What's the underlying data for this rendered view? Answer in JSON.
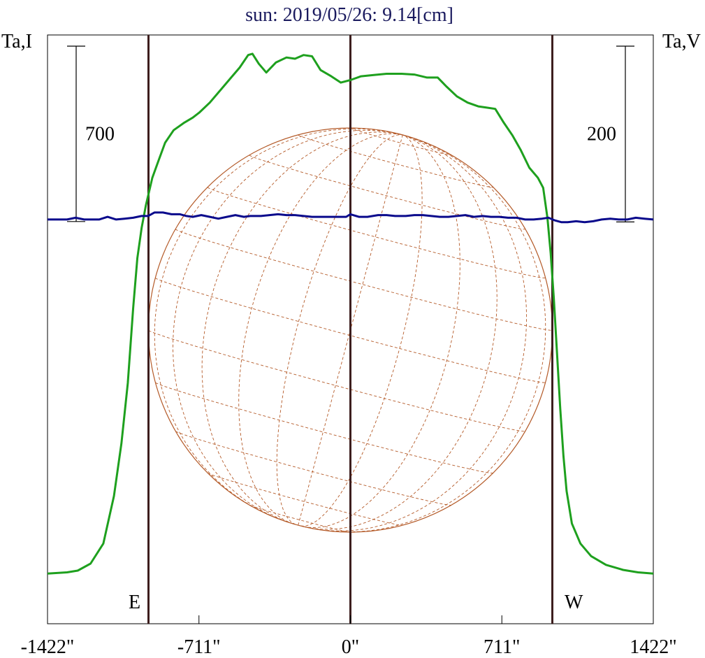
{
  "chart_data": {
    "type": "line",
    "title": "sun: 2019/05/26: 9.14[cm]",
    "ylabel_left": "Ta,I",
    "ylabel_right": "Ta,V",
    "xlabel": "",
    "x_tick_values": [
      -1422,
      -711,
      0,
      711,
      1422
    ],
    "x_tick_labels": [
      "-1422\"",
      "-711\"",
      "0\"",
      "711\"",
      "1422\""
    ],
    "xlim": [
      -1422,
      1422
    ],
    "limb_labels": {
      "east": "E",
      "west": "W"
    },
    "vertical_markers": [
      -948,
      0,
      948
    ],
    "solar_radius_arcsec": 948,
    "scale_bars": [
      {
        "side": "left",
        "label": "700",
        "value": 700,
        "axis": "I"
      },
      {
        "side": "right",
        "label": "200",
        "value": 200,
        "axis": "V"
      }
    ],
    "ylim_I": [
      -200,
      2150
    ],
    "ylim_V": [
      -460,
      210
    ],
    "colors": {
      "intensity": "#1ea01e",
      "polarization": "#0a0a8c",
      "limb_markers": "#3d1e1e",
      "solar_disk": "#b45a28",
      "title": "#1a1a5e",
      "axes": "#000000"
    },
    "series": [
      {
        "name": "I",
        "axis": "I",
        "points": [
          [
            -1422,
            0
          ],
          [
            -1330,
            5
          ],
          [
            -1280,
            12
          ],
          [
            -1220,
            40
          ],
          [
            -1160,
            120
          ],
          [
            -1110,
            310
          ],
          [
            -1075,
            520
          ],
          [
            -1045,
            760
          ],
          [
            -1020,
            1060
          ],
          [
            -1000,
            1260
          ],
          [
            -980,
            1380
          ],
          [
            -960,
            1470
          ],
          [
            -930,
            1580
          ],
          [
            -900,
            1650
          ],
          [
            -870,
            1720
          ],
          [
            -830,
            1770
          ],
          [
            -780,
            1800
          ],
          [
            -740,
            1820
          ],
          [
            -710,
            1840
          ],
          [
            -660,
            1880
          ],
          [
            -620,
            1920
          ],
          [
            -560,
            1980
          ],
          [
            -520,
            2020
          ],
          [
            -480,
            2070
          ],
          [
            -460,
            2075
          ],
          [
            -430,
            2035
          ],
          [
            -395,
            2000
          ],
          [
            -350,
            2040
          ],
          [
            -300,
            2060
          ],
          [
            -260,
            2055
          ],
          [
            -220,
            2070
          ],
          [
            -180,
            2065
          ],
          [
            -140,
            2010
          ],
          [
            -90,
            1985
          ],
          [
            -45,
            1960
          ],
          [
            0,
            1970
          ],
          [
            50,
            1985
          ],
          [
            110,
            1990
          ],
          [
            170,
            1995
          ],
          [
            240,
            1995
          ],
          [
            300,
            1992
          ],
          [
            360,
            1980
          ],
          [
            410,
            1980
          ],
          [
            450,
            1945
          ],
          [
            500,
            1905
          ],
          [
            550,
            1880
          ],
          [
            600,
            1865
          ],
          [
            640,
            1860
          ],
          [
            680,
            1855
          ],
          [
            720,
            1800
          ],
          [
            760,
            1750
          ],
          [
            800,
            1690
          ],
          [
            840,
            1620
          ],
          [
            880,
            1580
          ],
          [
            905,
            1540
          ],
          [
            925,
            1420
          ],
          [
            940,
            1280
          ],
          [
            955,
            1100
          ],
          [
            970,
            880
          ],
          [
            985,
            660
          ],
          [
            1000,
            470
          ],
          [
            1015,
            330
          ],
          [
            1040,
            200
          ],
          [
            1080,
            120
          ],
          [
            1130,
            70
          ],
          [
            1200,
            35
          ],
          [
            1280,
            15
          ],
          [
            1350,
            5
          ],
          [
            1422,
            0
          ]
        ]
      },
      {
        "name": "V",
        "axis": "V",
        "points": [
          [
            -1422,
            0
          ],
          [
            -1330,
            0
          ],
          [
            -1290,
            2
          ],
          [
            -1250,
            0
          ],
          [
            -1180,
            0
          ],
          [
            -1140,
            3
          ],
          [
            -1100,
            0
          ],
          [
            -1060,
            1
          ],
          [
            -1020,
            2
          ],
          [
            -980,
            4
          ],
          [
            -950,
            4
          ],
          [
            -920,
            8
          ],
          [
            -880,
            8
          ],
          [
            -840,
            6
          ],
          [
            -800,
            6
          ],
          [
            -770,
            4
          ],
          [
            -740,
            3
          ],
          [
            -700,
            5
          ],
          [
            -660,
            3
          ],
          [
            -620,
            1
          ],
          [
            -580,
            3
          ],
          [
            -540,
            5
          ],
          [
            -500,
            3
          ],
          [
            -470,
            4
          ],
          [
            -420,
            4
          ],
          [
            -380,
            5
          ],
          [
            -340,
            6
          ],
          [
            -300,
            5
          ],
          [
            -260,
            5
          ],
          [
            -220,
            4
          ],
          [
            -180,
            3
          ],
          [
            -140,
            3
          ],
          [
            -100,
            3
          ],
          [
            -60,
            3
          ],
          [
            -20,
            3
          ],
          [
            0,
            6
          ],
          [
            40,
            3
          ],
          [
            80,
            3
          ],
          [
            130,
            5
          ],
          [
            170,
            5
          ],
          [
            210,
            4
          ],
          [
            260,
            4
          ],
          [
            300,
            5
          ],
          [
            340,
            5
          ],
          [
            380,
            4
          ],
          [
            420,
            3
          ],
          [
            460,
            3
          ],
          [
            500,
            4
          ],
          [
            540,
            5
          ],
          [
            580,
            3
          ],
          [
            620,
            4
          ],
          [
            660,
            3
          ],
          [
            700,
            3
          ],
          [
            740,
            2
          ],
          [
            780,
            2
          ],
          [
            820,
            0
          ],
          [
            860,
            0
          ],
          [
            900,
            1
          ],
          [
            930,
            2
          ],
          [
            960,
            -1
          ],
          [
            990,
            -3
          ],
          [
            1020,
            -3
          ],
          [
            1060,
            -2
          ],
          [
            1100,
            -3
          ],
          [
            1140,
            -2
          ],
          [
            1180,
            0
          ],
          [
            1220,
            1
          ],
          [
            1260,
            0
          ],
          [
            1300,
            0
          ],
          [
            1340,
            2
          ],
          [
            1380,
            1
          ],
          [
            1422,
            0
          ]
        ]
      }
    ]
  }
}
